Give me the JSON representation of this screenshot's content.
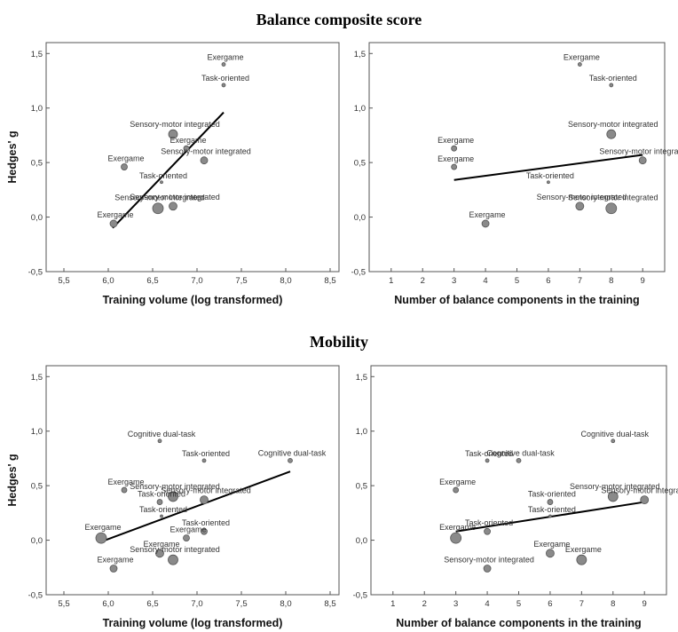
{
  "sections": [
    {
      "title": "Balance composite score"
    },
    {
      "title": "Mobility"
    }
  ],
  "chart_data": [
    {
      "type": "scatter",
      "section": "Balance composite score",
      "xlabel": "Training volume (log transformed)",
      "ylabel": "Hedges' g",
      "xlim": [
        5.3,
        8.6
      ],
      "ylim": [
        -0.5,
        1.6
      ],
      "xticks": [
        5.5,
        6.0,
        6.5,
        7.0,
        7.5,
        8.0,
        8.5
      ],
      "xtick_labels": [
        "5,5",
        "6,0",
        "6,5",
        "7,0",
        "7,5",
        "8,0",
        "8,5"
      ],
      "yticks": [
        -0.5,
        0.0,
        0.5,
        1.0,
        1.5
      ],
      "ytick_labels": [
        "-0,5",
        "0,0",
        "0,5",
        "1,0",
        "1,5"
      ],
      "fit_line": {
        "x": [
          6.05,
          7.3
        ],
        "y": [
          -0.1,
          0.96
        ]
      },
      "points": [
        {
          "x": 7.3,
          "y": 1.4,
          "size": 2,
          "label": "Exergame"
        },
        {
          "x": 7.3,
          "y": 1.21,
          "size": 2,
          "label": "Task-oriented"
        },
        {
          "x": 6.73,
          "y": 0.76,
          "size": 5,
          "label": "Sensory-motor integrated"
        },
        {
          "x": 6.88,
          "y": 0.63,
          "size": 3,
          "label": "Exergame"
        },
        {
          "x": 6.18,
          "y": 0.46,
          "size": 3.5,
          "label": "Exergame"
        },
        {
          "x": 7.08,
          "y": 0.52,
          "size": 4,
          "label": "Sensory-motor integrated"
        },
        {
          "x": 6.6,
          "y": 0.32,
          "size": 1.5,
          "label": "Task-oriented"
        },
        {
          "x": 6.56,
          "y": 0.08,
          "size": 6,
          "label": "Sensory-motor integrated"
        },
        {
          "x": 6.73,
          "y": 0.1,
          "size": 4.5,
          "label": "Sensory-motor integrated"
        },
        {
          "x": 6.06,
          "y": -0.06,
          "size": 4,
          "label": "Exergame"
        }
      ]
    },
    {
      "type": "scatter",
      "section": "Balance composite score",
      "xlabel": "Number of balance components in the training",
      "ylabel": "",
      "xlim": [
        0.3,
        9.7
      ],
      "ylim": [
        -0.5,
        1.6
      ],
      "xticks": [
        1,
        2,
        3,
        4,
        5,
        6,
        7,
        8,
        9
      ],
      "xtick_labels": [
        "1",
        "2",
        "3",
        "4",
        "5",
        "6",
        "7",
        "8",
        "9"
      ],
      "yticks": [
        -0.5,
        0.0,
        0.5,
        1.0,
        1.5
      ],
      "ytick_labels": [
        "-0,5",
        "0,0",
        "0,5",
        "1,0",
        "1,5"
      ],
      "fit_line": {
        "x": [
          3,
          9
        ],
        "y": [
          0.34,
          0.57
        ]
      },
      "points": [
        {
          "x": 7,
          "y": 1.4,
          "size": 2,
          "label": "Exergame"
        },
        {
          "x": 8,
          "y": 1.21,
          "size": 2,
          "label": "Task-oriented"
        },
        {
          "x": 8,
          "y": 0.76,
          "size": 5,
          "label": "Sensory-motor integrated"
        },
        {
          "x": 3,
          "y": 0.63,
          "size": 3,
          "label": "Exergame"
        },
        {
          "x": 3,
          "y": 0.46,
          "size": 3,
          "label": "Exergame"
        },
        {
          "x": 9,
          "y": 0.52,
          "size": 4,
          "label": "Sensory-motor integrated"
        },
        {
          "x": 6,
          "y": 0.32,
          "size": 1.5,
          "label": "Task-oriented"
        },
        {
          "x": 8,
          "y": 0.08,
          "size": 6,
          "label": "Sensory-motor integrated"
        },
        {
          "x": 7,
          "y": 0.1,
          "size": 4.5,
          "label": "Sensory-motor integrated"
        },
        {
          "x": 4,
          "y": -0.06,
          "size": 4,
          "label": "Exergame"
        }
      ]
    },
    {
      "type": "scatter",
      "section": "Mobility",
      "xlabel": "Training volume (log transformed)",
      "ylabel": "Hedges' g",
      "xlim": [
        5.3,
        8.6
      ],
      "ylim": [
        -0.5,
        1.6
      ],
      "xticks": [
        5.5,
        6.0,
        6.5,
        7.0,
        7.5,
        8.0,
        8.5
      ],
      "xtick_labels": [
        "5,5",
        "6,0",
        "6,5",
        "7,0",
        "7,5",
        "8,0",
        "8,5"
      ],
      "yticks": [
        -0.5,
        0.0,
        0.5,
        1.0,
        1.5
      ],
      "ytick_labels": [
        "-0,5",
        "0,0",
        "0,5",
        "1,0",
        "1,5"
      ],
      "fit_line": {
        "x": [
          5.9,
          8.05
        ],
        "y": [
          -0.02,
          0.63
        ]
      },
      "points": [
        {
          "x": 6.58,
          "y": 0.91,
          "size": 2,
          "label": "Cognitive dual-task"
        },
        {
          "x": 7.08,
          "y": 0.73,
          "size": 2,
          "label": "Task-oriented"
        },
        {
          "x": 8.05,
          "y": 0.73,
          "size": 2.5,
          "label": "Cognitive dual-task"
        },
        {
          "x": 6.18,
          "y": 0.46,
          "size": 3,
          "label": "Exergame"
        },
        {
          "x": 6.73,
          "y": 0.4,
          "size": 5.5,
          "label": "Sensory-motor integrated"
        },
        {
          "x": 6.58,
          "y": 0.35,
          "size": 3,
          "label": "Task-oriented"
        },
        {
          "x": 7.08,
          "y": 0.37,
          "size": 4.5,
          "label": "Sensory-motor integrated"
        },
        {
          "x": 6.6,
          "y": 0.22,
          "size": 1.5,
          "label": "Task-oriented"
        },
        {
          "x": 5.92,
          "y": 0.02,
          "size": 6,
          "label": "Exergame"
        },
        {
          "x": 7.08,
          "y": 0.08,
          "size": 3.5,
          "label": "Task-oriented"
        },
        {
          "x": 6.88,
          "y": 0.02,
          "size": 3.5,
          "label": "Exergame"
        },
        {
          "x": 6.58,
          "y": -0.12,
          "size": 4.5,
          "label": "Exergame"
        },
        {
          "x": 6.73,
          "y": -0.18,
          "size": 5.5,
          "label": "Sensory-motor integrated"
        },
        {
          "x": 6.06,
          "y": -0.26,
          "size": 4,
          "label": "Exergame"
        }
      ]
    },
    {
      "type": "scatter",
      "section": "Mobility",
      "xlabel": "Number of balance components in the training",
      "ylabel": "",
      "xlim": [
        0.3,
        9.7
      ],
      "ylim": [
        -0.5,
        1.6
      ],
      "xticks": [
        1,
        2,
        3,
        4,
        5,
        6,
        7,
        8,
        9
      ],
      "xtick_labels": [
        "1",
        "2",
        "3",
        "4",
        "5",
        "6",
        "7",
        "8",
        "9"
      ],
      "yticks": [
        -0.5,
        0.0,
        0.5,
        1.0,
        1.5
      ],
      "ytick_labels": [
        "-0,5",
        "0,0",
        "0,5",
        "1,0",
        "1,5"
      ],
      "fit_line": {
        "x": [
          3,
          9
        ],
        "y": [
          0.08,
          0.35
        ]
      },
      "points": [
        {
          "x": 8,
          "y": 0.91,
          "size": 2,
          "label": "Cognitive dual-task"
        },
        {
          "x": 4,
          "y": 0.73,
          "size": 2,
          "label": "Task-oriented"
        },
        {
          "x": 5,
          "y": 0.73,
          "size": 2.5,
          "label": "Cognitive dual-task"
        },
        {
          "x": 3,
          "y": 0.46,
          "size": 3,
          "label": "Exergame"
        },
        {
          "x": 8,
          "y": 0.4,
          "size": 5.5,
          "label": "Sensory-motor integrated"
        },
        {
          "x": 6,
          "y": 0.35,
          "size": 3,
          "label": "Task-oriented"
        },
        {
          "x": 9,
          "y": 0.37,
          "size": 4.5,
          "label": "Sensory-motor integrated"
        },
        {
          "x": 6,
          "y": 0.22,
          "size": 1.5,
          "label": "Task-oriented"
        },
        {
          "x": 3,
          "y": 0.02,
          "size": 6,
          "label": "Exergame"
        },
        {
          "x": 4,
          "y": 0.08,
          "size": 3.5,
          "label": "Task-oriented"
        },
        {
          "x": 6,
          "y": -0.12,
          "size": 4.5,
          "label": "Exergame"
        },
        {
          "x": 7,
          "y": -0.18,
          "size": 5.5,
          "label": "Exergame"
        },
        {
          "x": 4,
          "y": -0.26,
          "size": 4,
          "label": "Sensory-motor integrated"
        }
      ]
    }
  ]
}
